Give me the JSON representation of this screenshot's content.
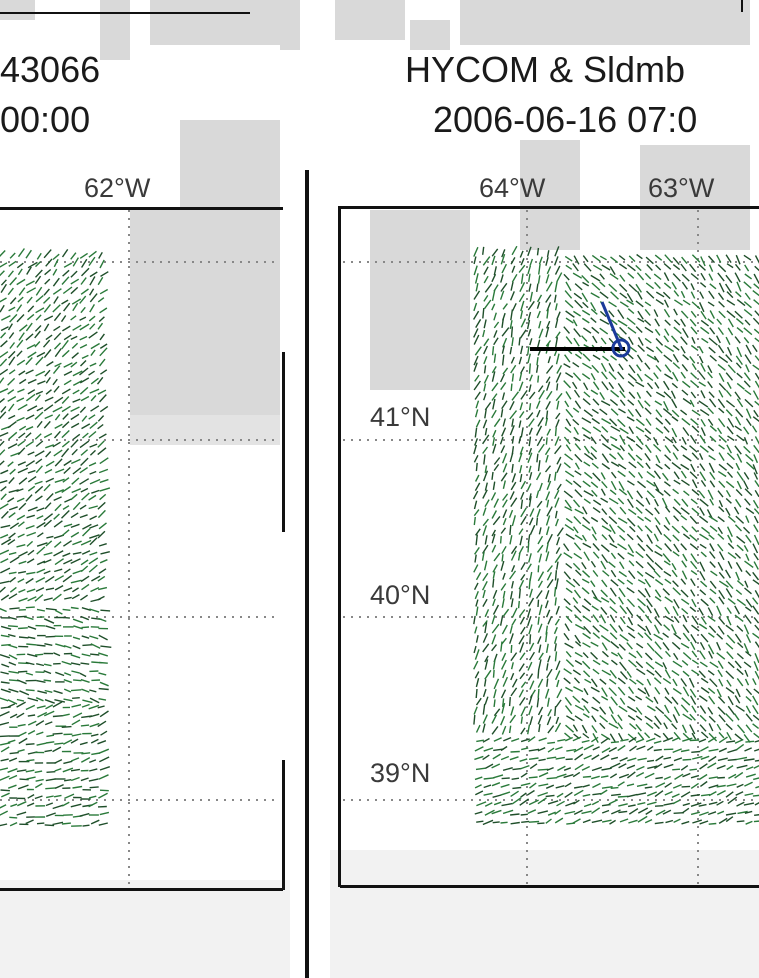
{
  "left_panel": {
    "title_line1": "43066",
    "title_line2": "00:00",
    "lon_labels": [
      "62°W"
    ]
  },
  "right_panel": {
    "title_line1": "HYCOM & Sldmb",
    "title_line2": "2006-06-16 07:0",
    "lon_labels": [
      "64°W",
      "63°W"
    ],
    "lat_labels": [
      "41°N",
      "40°N",
      "39°N"
    ]
  },
  "colors": {
    "vectors": "#2a7a3a",
    "vectors_dark": "#1f4f2a",
    "drifter_track": "#000000",
    "drifter_vector": "#1a3a9a",
    "grid": "#888888",
    "background_patch": "#d9d9d9"
  }
}
